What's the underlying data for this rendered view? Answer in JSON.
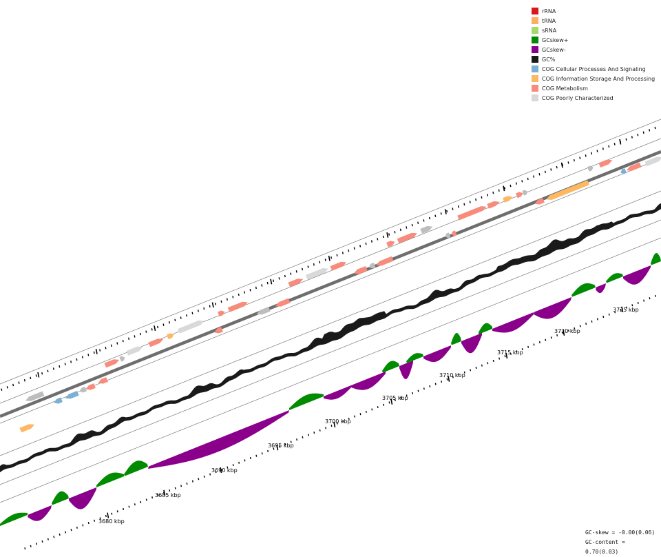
{
  "legend": [
    {
      "label": "rRNA",
      "color": "#d7191c"
    },
    {
      "label": "tRNA",
      "color": "#fdae61"
    },
    {
      "label": "sRNA",
      "color": "#a6d96a"
    },
    {
      "label": "GCskew+",
      "color": "#008b00"
    },
    {
      "label": "GCskew-",
      "color": "#8b008b"
    },
    {
      "label": "GC%",
      "color": "#1a1a1a"
    },
    {
      "label": "COG Cellular Processes And Signaling",
      "color": "#7bafd4"
    },
    {
      "label": "COG Information Storage And Processing",
      "color": "#fdb863"
    },
    {
      "label": "COG Metabolism",
      "color": "#f78c7c"
    },
    {
      "label": "COG Poorly Characterized",
      "color": "#d9d9d9"
    }
  ],
  "scale": {
    "unit": "kbp",
    "labels": [
      "3680 kbp",
      "3685 kbp",
      "3690 kbp",
      "3695 kbp",
      "3700 kbp",
      "3705 kbp",
      "3710 kbp",
      "3715 kbp",
      "3720 kbp",
      "3725 kbp"
    ]
  },
  "stats": {
    "gc_skew": "GC-skew = -0.00(0.06)",
    "gc_content": "GC-content = 0.70(0.03)"
  }
}
